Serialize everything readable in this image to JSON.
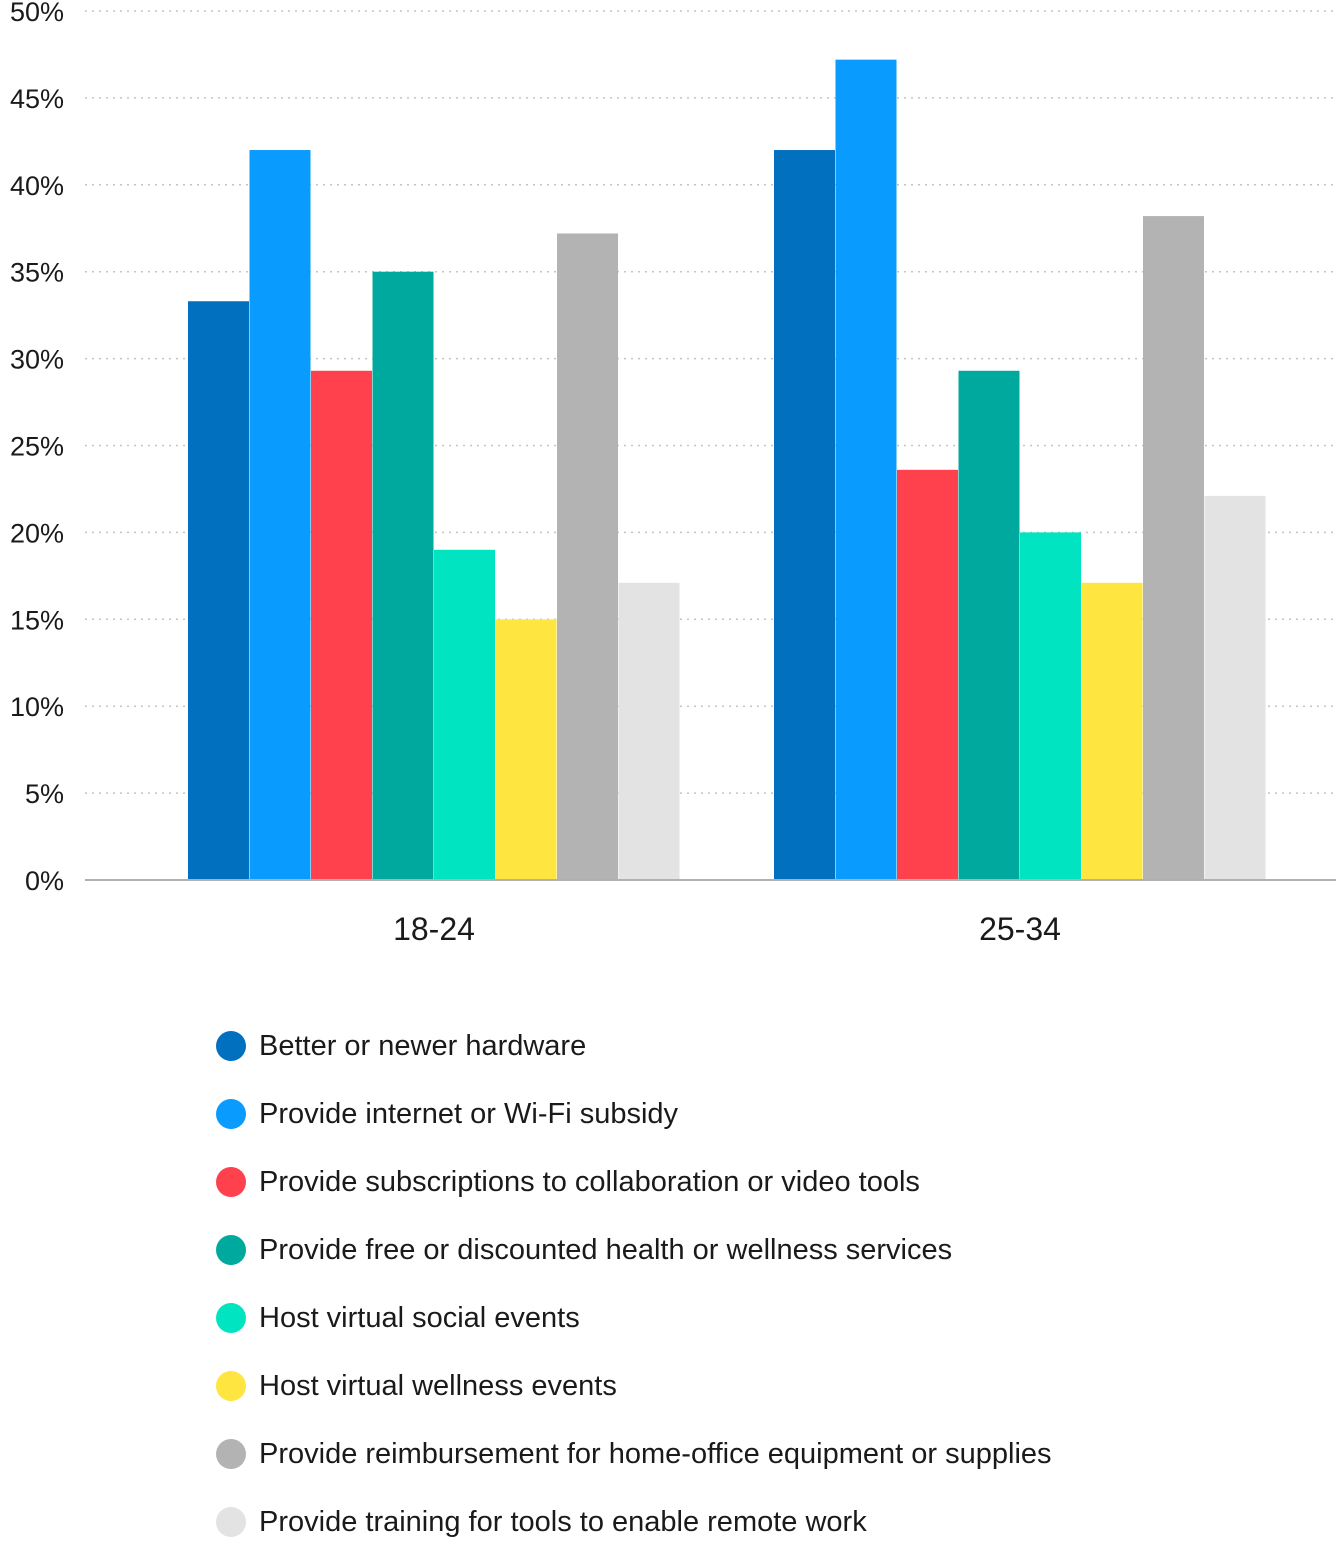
{
  "chart_data": {
    "type": "bar",
    "title": "",
    "xlabel": "",
    "ylabel": "",
    "categories": [
      "18-24",
      "25-34"
    ],
    "ylim": [
      0,
      50
    ],
    "y_ticks": [
      "0%",
      "5%",
      "10%",
      "15%",
      "20%",
      "25%",
      "30%",
      "35%",
      "40%",
      "45%",
      "50%"
    ],
    "grid": true,
    "legend_position": "bottom",
    "series": [
      {
        "name": "Better or newer hardware",
        "color": "#0070BF",
        "values": [
          33.3,
          42
        ]
      },
      {
        "name": "Provide internet or Wi-Fi subsidy",
        "color": "#0A9BFF",
        "values": [
          42,
          47.2
        ]
      },
      {
        "name": "Provide subscriptions to collaboration or video tools",
        "color": "#FF414D",
        "values": [
          29.3,
          23.6
        ]
      },
      {
        "name": "Provide free or discounted health or wellness services",
        "color": "#00A99D",
        "values": [
          35,
          29.3
        ]
      },
      {
        "name": "Host virtual social events",
        "color": "#00E4C2",
        "values": [
          19,
          20
        ]
      },
      {
        "name": "Host virtual wellness events",
        "color": "#FFE53F",
        "values": [
          15,
          17.1
        ]
      },
      {
        "name": "Provide reimbursement for home-office equipment or supplies",
        "color": "#B3B3B3",
        "values": [
          37.2,
          38.2
        ]
      },
      {
        "name": "Provide training for tools to enable remote work",
        "color": "#E3E3E3",
        "values": [
          17.1,
          22.1
        ]
      }
    ]
  }
}
